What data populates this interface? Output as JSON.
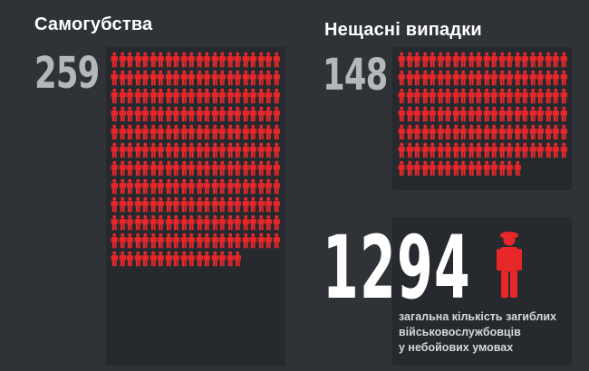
{
  "suicides": {
    "title": "Самогубства",
    "count": "259",
    "icons": 259
  },
  "accidents": {
    "title": "Нещасні випадки",
    "count": "148",
    "icons": 148
  },
  "total": {
    "number": "1294",
    "caption_lines": [
      "загальна кількість загиблих",
      "військовослужбовців",
      "у небойових умовах"
    ]
  },
  "colors": {
    "icon": "#e8272a",
    "background": "#2f3338",
    "panel": "#262a2f"
  },
  "icons": {
    "unit": "person-icon"
  }
}
